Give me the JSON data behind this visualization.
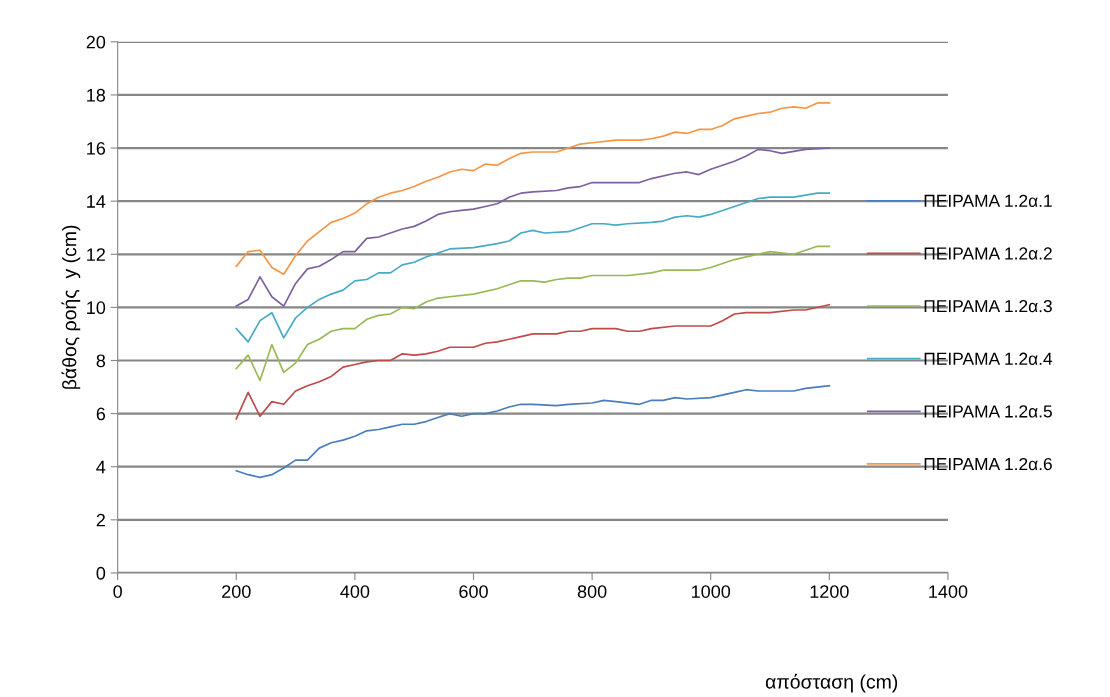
{
  "chart_data": {
    "type": "line",
    "xlabel": "απόσταση (cm)",
    "ylabel": "βάθος ροής  y (cm)",
    "xlim": [
      0,
      1400
    ],
    "xticks": [
      0,
      200,
      400,
      600,
      800,
      1000,
      1200,
      1400
    ],
    "ylim": [
      0,
      20
    ],
    "yticks": [
      0,
      2,
      4,
      6,
      8,
      10,
      12,
      14,
      16,
      18,
      20
    ],
    "grid": "y",
    "legend": "right",
    "marker": "none",
    "line_style": "solid",
    "series": [
      {
        "name": "ΠΕΙΡΑΜΑ 1.2α.1",
        "color": "#4a7ebb",
        "x": [
          200,
          220,
          240,
          260,
          280,
          300,
          320,
          340,
          360,
          380,
          400,
          420,
          440,
          460,
          480,
          500,
          520,
          540,
          560,
          580,
          600,
          620,
          640,
          660,
          680,
          700,
          740,
          760,
          800,
          820,
          840,
          880,
          900,
          920,
          940,
          960,
          1000,
          1040,
          1060,
          1080,
          1100,
          1140,
          1160,
          1200
        ],
        "values": [
          3.85,
          3.7,
          3.6,
          3.7,
          3.95,
          4.25,
          4.25,
          4.7,
          4.9,
          5.0,
          5.15,
          5.35,
          5.4,
          5.5,
          5.6,
          5.6,
          5.7,
          5.85,
          6.0,
          5.9,
          6.0,
          6.0,
          6.1,
          6.25,
          6.35,
          6.35,
          6.3,
          6.35,
          6.4,
          6.5,
          6.45,
          6.35,
          6.5,
          6.5,
          6.6,
          6.55,
          6.6,
          6.8,
          6.9,
          6.85,
          6.85,
          6.85,
          6.95,
          7.05
        ]
      },
      {
        "name": "ΠΕΙΡΑΜΑ 1.2α.2",
        "color": "#be4b48",
        "x": [
          200,
          220,
          240,
          260,
          280,
          300,
          320,
          340,
          360,
          380,
          400,
          420,
          440,
          460,
          480,
          500,
          520,
          540,
          560,
          600,
          620,
          640,
          660,
          680,
          700,
          740,
          760,
          780,
          800,
          840,
          860,
          880,
          900,
          940,
          1000,
          1020,
          1040,
          1060,
          1100,
          1140,
          1160,
          1200
        ],
        "values": [
          5.8,
          6.8,
          5.9,
          6.45,
          6.35,
          6.85,
          7.05,
          7.2,
          7.4,
          7.75,
          7.85,
          7.95,
          8.0,
          8.0,
          8.25,
          8.2,
          8.25,
          8.35,
          8.5,
          8.5,
          8.65,
          8.7,
          8.8,
          8.9,
          9.0,
          9.0,
          9.1,
          9.1,
          9.2,
          9.2,
          9.1,
          9.1,
          9.2,
          9.3,
          9.3,
          9.5,
          9.75,
          9.8,
          9.8,
          9.9,
          9.9,
          10.1
        ]
      },
      {
        "name": "ΠΕΙΡΑΜΑ 1.2α.3",
        "color": "#98b954",
        "x": [
          200,
          220,
          240,
          260,
          280,
          300,
          320,
          340,
          360,
          380,
          400,
          420,
          440,
          460,
          480,
          500,
          520,
          540,
          560,
          600,
          640,
          660,
          680,
          700,
          720,
          740,
          760,
          780,
          800,
          860,
          900,
          920,
          980,
          1000,
          1040,
          1080,
          1100,
          1140,
          1180,
          1200
        ],
        "values": [
          7.7,
          8.2,
          7.25,
          8.6,
          7.55,
          7.9,
          8.6,
          8.8,
          9.1,
          9.2,
          9.2,
          9.55,
          9.7,
          9.75,
          10.0,
          9.95,
          10.2,
          10.35,
          10.4,
          10.5,
          10.7,
          10.85,
          11.0,
          11.0,
          10.95,
          11.05,
          11.1,
          11.1,
          11.2,
          11.2,
          11.3,
          11.4,
          11.4,
          11.5,
          11.8,
          12.0,
          12.1,
          12.0,
          12.3,
          12.3
        ]
      },
      {
        "name": "ΠΕΙΡΑΜΑ 1.2α.4",
        "color": "#46aac5",
        "x": [
          200,
          220,
          240,
          260,
          280,
          300,
          320,
          340,
          360,
          380,
          400,
          420,
          440,
          460,
          480,
          500,
          520,
          540,
          560,
          600,
          640,
          660,
          680,
          700,
          720,
          760,
          800,
          820,
          840,
          860,
          900,
          920,
          940,
          960,
          980,
          1000,
          1040,
          1080,
          1100,
          1140,
          1180,
          1200
        ],
        "values": [
          9.2,
          8.7,
          9.5,
          9.8,
          8.85,
          9.6,
          10.0,
          10.3,
          10.5,
          10.65,
          11.0,
          11.05,
          11.3,
          11.3,
          11.6,
          11.7,
          11.9,
          12.05,
          12.2,
          12.25,
          12.4,
          12.5,
          12.8,
          12.9,
          12.8,
          12.85,
          13.15,
          13.15,
          13.1,
          13.15,
          13.2,
          13.25,
          13.4,
          13.45,
          13.4,
          13.5,
          13.8,
          14.1,
          14.15,
          14.15,
          14.3,
          14.3
        ]
      },
      {
        "name": "ΠΕΙΡΑΜΑ 1.2α.5",
        "color": "#7d60a0",
        "x": [
          200,
          220,
          240,
          260,
          280,
          300,
          320,
          340,
          360,
          380,
          400,
          420,
          440,
          460,
          480,
          500,
          520,
          540,
          560,
          580,
          600,
          620,
          640,
          660,
          680,
          700,
          740,
          760,
          780,
          800,
          840,
          880,
          900,
          940,
          960,
          980,
          1000,
          1040,
          1060,
          1080,
          1100,
          1120,
          1160,
          1200
        ],
        "values": [
          10.05,
          10.3,
          11.15,
          10.4,
          10.05,
          10.9,
          11.45,
          11.55,
          11.8,
          12.1,
          12.1,
          12.6,
          12.65,
          12.8,
          12.95,
          13.05,
          13.25,
          13.5,
          13.6,
          13.65,
          13.7,
          13.8,
          13.9,
          14.15,
          14.3,
          14.35,
          14.4,
          14.5,
          14.55,
          14.7,
          14.7,
          14.7,
          14.85,
          15.05,
          15.1,
          15.0,
          15.2,
          15.5,
          15.7,
          15.95,
          15.9,
          15.8,
          15.95,
          16.0
        ]
      },
      {
        "name": "ΠΕΙΡΑΜΑ 1.2α.6",
        "color": "#f69545",
        "x": [
          200,
          220,
          240,
          260,
          280,
          300,
          320,
          340,
          360,
          380,
          400,
          420,
          440,
          460,
          480,
          500,
          520,
          540,
          560,
          580,
          600,
          620,
          640,
          660,
          680,
          700,
          740,
          760,
          780,
          800,
          840,
          880,
          900,
          920,
          940,
          960,
          980,
          1000,
          1020,
          1040,
          1060,
          1080,
          1100,
          1120,
          1140,
          1160,
          1180,
          1200
        ],
        "values": [
          11.55,
          12.1,
          12.15,
          11.5,
          11.25,
          11.95,
          12.5,
          12.85,
          13.2,
          13.35,
          13.55,
          13.9,
          14.15,
          14.3,
          14.4,
          14.55,
          14.75,
          14.9,
          15.1,
          15.2,
          15.15,
          15.4,
          15.35,
          15.6,
          15.8,
          15.85,
          15.85,
          16.0,
          16.15,
          16.2,
          16.3,
          16.3,
          16.35,
          16.45,
          16.6,
          16.55,
          16.7,
          16.7,
          16.85,
          17.1,
          17.2,
          17.3,
          17.35,
          17.5,
          17.55,
          17.5,
          17.7,
          17.7
        ]
      }
    ]
  }
}
